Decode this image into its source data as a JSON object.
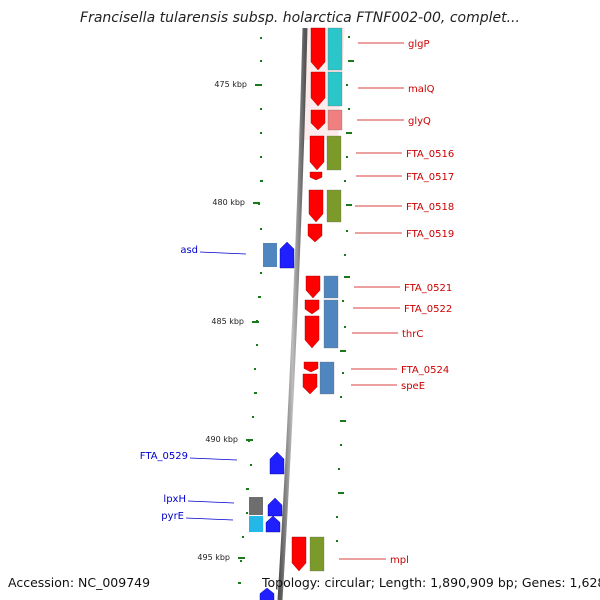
{
  "title": "Francisella tularensis subsp. holarctica FTNF002-00, complet...",
  "footer": {
    "accession": "Accession: NC_009749",
    "summary": "Topology: circular; Length: 1,890,909 bp; Genes: 1,628"
  },
  "ticks": [
    "475 kbp",
    "480 kbp",
    "485 kbp",
    "490 kbp",
    "495 kbp"
  ],
  "genes_right": [
    "glgP",
    "malQ",
    "glyQ",
    "FTA_0516",
    "FTA_0517",
    "FTA_0518",
    "FTA_0519",
    "FTA_0521",
    "FTA_0522",
    "thrC",
    "FTA_0524",
    "speE",
    "mpl"
  ],
  "genes_left": [
    "asd",
    "FTA_0529",
    "lpxH",
    "pyrE"
  ],
  "colors": {
    "forward_gene": "#ff0000",
    "reverse_gene": "#1f1fff",
    "cog_cyan": "#2bc6c9",
    "cog_olive": "#7b9a2a",
    "cog_steel": "#4f86c0",
    "cog_pink": "#f08080",
    "backbone": "#8a8a8a",
    "gc_dots": "#1a7a1a",
    "right_label": "#cc0000",
    "left_label": "#0000cc"
  }
}
